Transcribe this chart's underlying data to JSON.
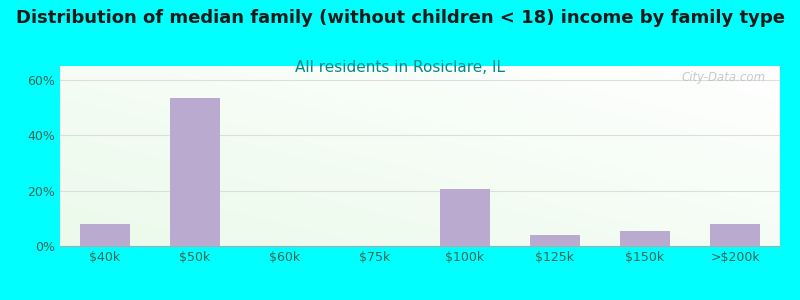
{
  "title": "Distribution of median family (without children < 18) income by family type",
  "subtitle": "All residents in Rosiclare, IL",
  "categories": [
    "$40k",
    "$50k",
    "$60k",
    "$75k",
    "$100k",
    "$125k",
    "$150k",
    ">$200k"
  ],
  "values": [
    8.0,
    53.5,
    0,
    0,
    20.5,
    4.0,
    5.5,
    8.0
  ],
  "bar_color": "#bbaad0",
  "fig_bg_color": "#00ffff",
  "plot_bg_color_tl": "#e8f8e8",
  "plot_bg_color_br": "#ffffff",
  "title_color": "#1a1a1a",
  "subtitle_color": "#008888",
  "axis_label_color": "#336655",
  "grid_color": "#dddddd",
  "ylim": [
    0,
    65
  ],
  "yticks": [
    0,
    20,
    40,
    60
  ],
  "ytick_labels": [
    "0%",
    "20%",
    "40%",
    "60%"
  ],
  "title_fontsize": 13,
  "subtitle_fontsize": 11,
  "tick_fontsize": 9,
  "watermark": "City-Data.com",
  "watermark_color": "#c0c0c0"
}
